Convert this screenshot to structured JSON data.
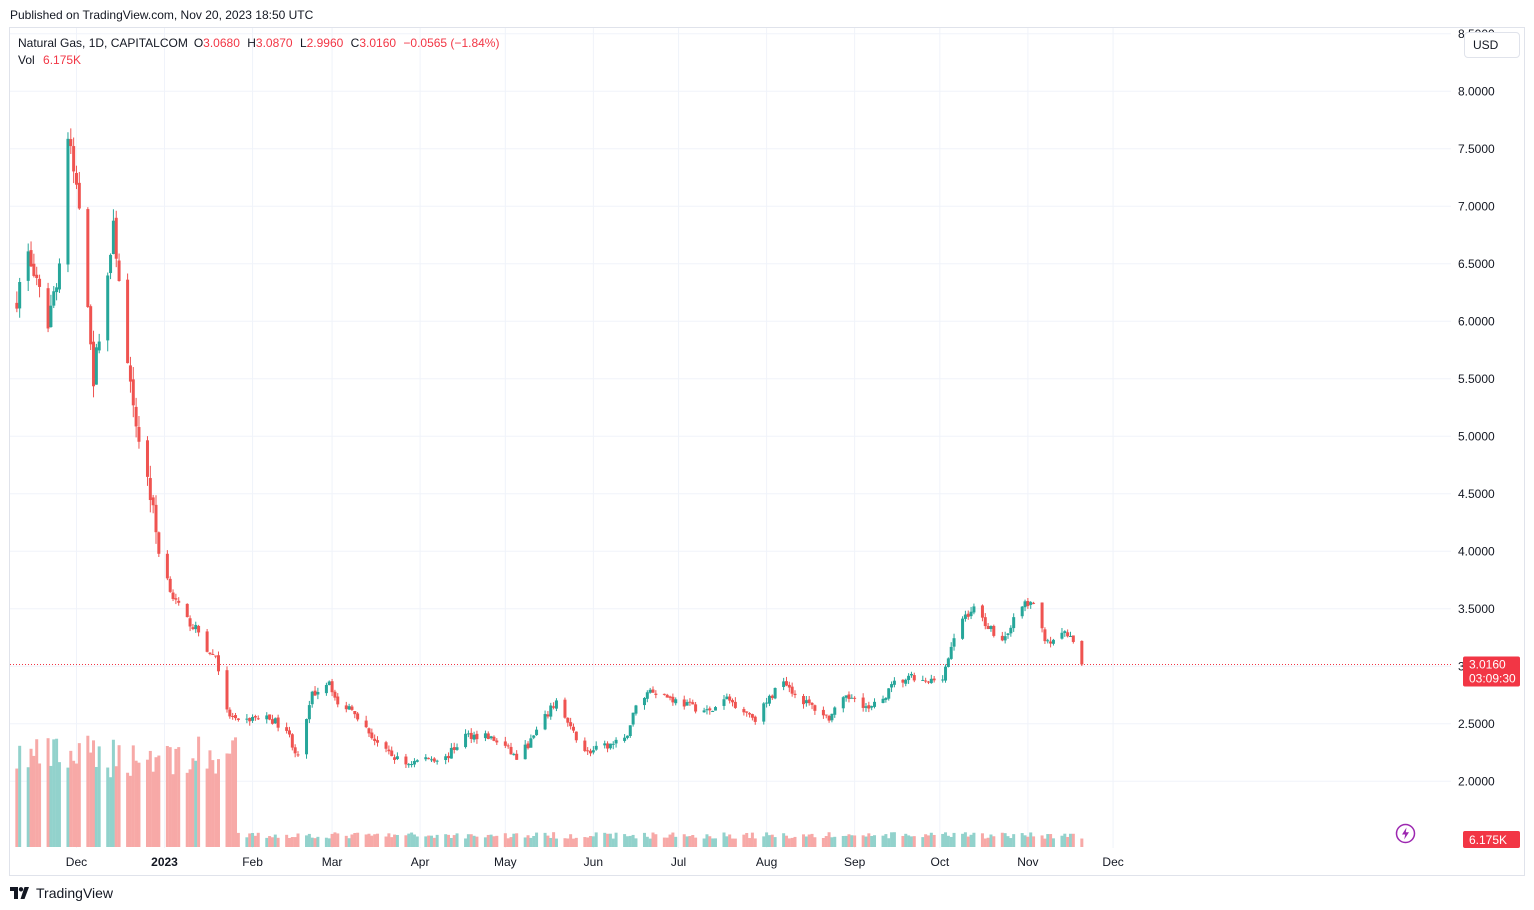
{
  "published": "Published on TradingView.com, Nov 20, 2023 18:50 UTC",
  "legend": {
    "symbol": "Natural Gas, 1D, CAPITALCOM",
    "o_key": "O",
    "o_val": "3.0680",
    "h_key": "H",
    "h_val": "3.0870",
    "l_key": "L",
    "l_val": "2.9960",
    "c_key": "C",
    "c_val": "3.0160",
    "change": "−0.0565 (−1.84%)",
    "vol_key": "Vol",
    "vol_val": "6.175K"
  },
  "currency": "USD",
  "price_label": {
    "value": "3.0160",
    "countdown": "03:09:30"
  },
  "volume_label": "6.175K",
  "footer_brand": "TradingView",
  "colors": {
    "up": "#26a69a",
    "down": "#ef5350",
    "vol_up": "#92d2cc",
    "vol_down": "#f7a9a7",
    "grid": "#f0f3fa",
    "axis_text": "#131722",
    "price_tag": "#f23645"
  },
  "icons": {
    "lightning": "lightning-icon",
    "logo": "tradingview-logo-icon"
  },
  "chart_data": {
    "type": "candlestick",
    "title": "Natural Gas, 1D, CAPITALCOM",
    "y_axis": {
      "ticks": [
        "2.0000",
        "2.5000",
        "3.0000",
        "3.5000",
        "4.0000",
        "4.5000",
        "5.0000",
        "5.5000",
        "6.0000",
        "6.5000",
        "7.0000",
        "7.5000",
        "8.0000",
        "8.5000"
      ],
      "range": [
        1.42,
        8.55
      ]
    },
    "x_axis": {
      "ticks": [
        "Dec",
        "2023",
        "Feb",
        "Mar",
        "Apr",
        "May",
        "Jun",
        "Jul",
        "Aug",
        "Sep",
        "Oct",
        "Nov",
        "Dec"
      ],
      "bold_ticks": [
        "2023"
      ]
    },
    "last_close": 3.016,
    "volume_range": [
      0,
      14000
    ],
    "series": [
      {
        "name": "Price",
        "anchors": [
          [
            "2022-11-10",
            6.2
          ],
          [
            "2022-11-14",
            6.6
          ],
          [
            "2022-11-17",
            6.3
          ],
          [
            "2022-11-21",
            6.0
          ],
          [
            "2022-11-25",
            6.5
          ],
          [
            "2022-11-28",
            7.6
          ],
          [
            "2022-11-30",
            7.3
          ],
          [
            "2022-12-02",
            7.0
          ],
          [
            "2022-12-05",
            6.2
          ],
          [
            "2022-12-07",
            5.5
          ],
          [
            "2022-12-09",
            5.9
          ],
          [
            "2022-12-12",
            6.4
          ],
          [
            "2022-12-14",
            6.8
          ],
          [
            "2022-12-16",
            6.4
          ],
          [
            "2022-12-19",
            5.6
          ],
          [
            "2022-12-21",
            5.2
          ],
          [
            "2022-12-23",
            5.0
          ],
          [
            "2022-12-27",
            4.5
          ],
          [
            "2022-12-30",
            4.0
          ],
          [
            "2023-01-04",
            3.6
          ],
          [
            "2023-01-09",
            3.4
          ],
          [
            "2023-01-13",
            3.3
          ],
          [
            "2023-01-17",
            3.1
          ],
          [
            "2023-01-19",
            3.1
          ],
          [
            "2023-01-23",
            2.6
          ],
          [
            "2023-01-27",
            2.5
          ],
          [
            "2023-02-01",
            2.55
          ],
          [
            "2023-02-07",
            2.55
          ],
          [
            "2023-02-13",
            2.45
          ],
          [
            "2023-02-17",
            2.2
          ],
          [
            "2023-02-22",
            2.75
          ],
          [
            "2023-02-28",
            2.88
          ],
          [
            "2023-03-03",
            2.65
          ],
          [
            "2023-03-08",
            2.65
          ],
          [
            "2023-03-13",
            2.45
          ],
          [
            "2023-03-20",
            2.25
          ],
          [
            "2023-03-27",
            2.15
          ],
          [
            "2023-04-03",
            2.2
          ],
          [
            "2023-04-10",
            2.2
          ],
          [
            "2023-04-17",
            2.4
          ],
          [
            "2023-04-24",
            2.4
          ],
          [
            "2023-05-01",
            2.3
          ],
          [
            "2023-05-05",
            2.2
          ],
          [
            "2023-05-10",
            2.35
          ],
          [
            "2023-05-15",
            2.55
          ],
          [
            "2023-05-19",
            2.7
          ],
          [
            "2023-05-24",
            2.45
          ],
          [
            "2023-05-30",
            2.25
          ],
          [
            "2023-06-05",
            2.3
          ],
          [
            "2023-06-12",
            2.35
          ],
          [
            "2023-06-16",
            2.65
          ],
          [
            "2023-06-21",
            2.8
          ],
          [
            "2023-06-26",
            2.75
          ],
          [
            "2023-06-30",
            2.7
          ],
          [
            "2023-07-06",
            2.65
          ],
          [
            "2023-07-12",
            2.6
          ],
          [
            "2023-07-18",
            2.72
          ],
          [
            "2023-07-24",
            2.62
          ],
          [
            "2023-07-28",
            2.55
          ],
          [
            "2023-08-03",
            2.75
          ],
          [
            "2023-08-07",
            2.9
          ],
          [
            "2023-08-11",
            2.75
          ],
          [
            "2023-08-17",
            2.65
          ],
          [
            "2023-08-23",
            2.55
          ],
          [
            "2023-08-28",
            2.7
          ],
          [
            "2023-09-01",
            2.75
          ],
          [
            "2023-09-06",
            2.62
          ],
          [
            "2023-09-11",
            2.72
          ],
          [
            "2023-09-15",
            2.85
          ],
          [
            "2023-09-21",
            2.9
          ],
          [
            "2023-09-26",
            2.85
          ],
          [
            "2023-10-02",
            2.92
          ],
          [
            "2023-10-05",
            3.15
          ],
          [
            "2023-10-09",
            3.42
          ],
          [
            "2023-10-13",
            3.5
          ],
          [
            "2023-10-18",
            3.35
          ],
          [
            "2023-10-23",
            3.22
          ],
          [
            "2023-10-27",
            3.4
          ],
          [
            "2023-10-31",
            3.55
          ],
          [
            "2023-11-03",
            3.52
          ],
          [
            "2023-11-07",
            3.25
          ],
          [
            "2023-11-10",
            3.2
          ],
          [
            "2023-11-14",
            3.3
          ],
          [
            "2023-11-17",
            3.2
          ],
          [
            "2023-11-20",
            3.016
          ]
        ]
      }
    ]
  }
}
